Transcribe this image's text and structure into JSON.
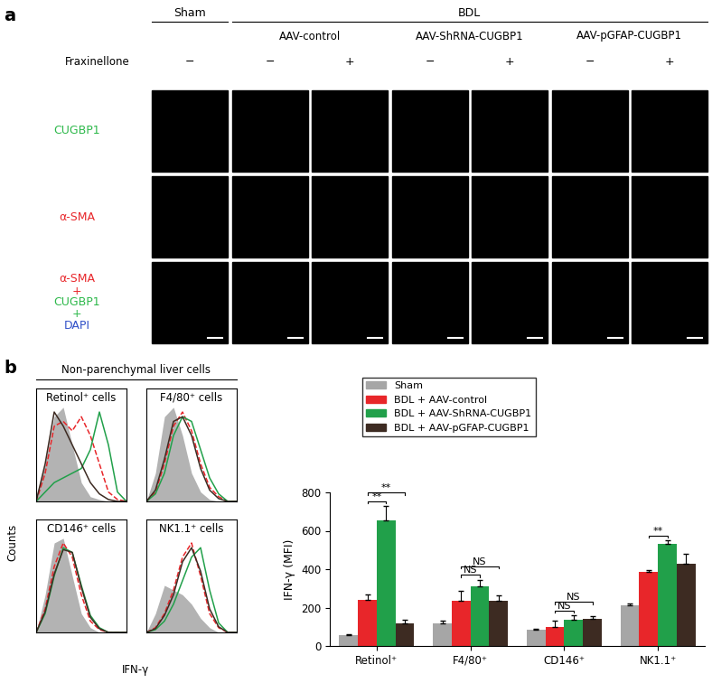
{
  "panel_a": {
    "label": "a",
    "fraxinellone_label": "Fraxinellone",
    "groups": [
      {
        "text": "Sham",
        "columns": [
          0
        ]
      },
      {
        "text": "BDL",
        "columns": [
          1,
          2,
          3,
          4,
          5,
          6
        ]
      }
    ],
    "subgroups": [
      {
        "text": "AAV-control",
        "columns": [
          1,
          2
        ]
      },
      {
        "text": "AAV-ShRNA-CUGBP1",
        "columns": [
          3,
          4
        ]
      },
      {
        "text": "AAV-pGFAP-CUGBP1",
        "columns": [
          5,
          6
        ]
      }
    ],
    "fraxinellone": [
      "−",
      "−",
      "+",
      "−",
      "+",
      "−",
      "+"
    ],
    "rows": [
      {
        "lines": [
          {
            "text": "CUGBP1",
            "color": "#2db84a"
          }
        ]
      },
      {
        "lines": [
          {
            "text": "α-SMA",
            "color": "#e8262a"
          }
        ]
      },
      {
        "lines": [
          {
            "text": "α-SMA",
            "color": "#e8262a"
          },
          {
            "text": "+",
            "color": "#e8262a"
          },
          {
            "text": "CUGBP1",
            "color": "#2db84a"
          },
          {
            "text": "+",
            "color": "#2db84a"
          },
          {
            "text": "DAPI",
            "color": "#3050c8"
          }
        ]
      }
    ]
  },
  "panel_b": {
    "label": "b",
    "histogram_group": "Non-parenchymal liver cells",
    "histogram_ylabel": "Counts",
    "histogram_xlabel": "IFN-γ"
  },
  "chart_data": [
    {
      "type": "line",
      "title": "Retinol⁺ cells",
      "x": [
        0,
        1,
        2,
        3,
        4,
        5,
        6,
        7,
        8,
        9,
        10
      ],
      "xlim": [
        0,
        10
      ],
      "ylim": [
        0,
        120
      ],
      "tick_labels": false,
      "series": [
        {
          "name": "Sham",
          "type": "area",
          "color": "#b3b3b3",
          "values": [
            5,
            40,
            90,
            100,
            60,
            20,
            5,
            2,
            0,
            0,
            0
          ]
        },
        {
          "name": "BDL + AAV-control",
          "color": "#e8262a",
          "line_style": "dashed",
          "values": [
            0,
            30,
            80,
            85,
            75,
            90,
            70,
            40,
            10,
            2,
            0
          ]
        },
        {
          "name": "BDL + AAV-ShRNA-CUGBP1",
          "color": "#21a04a",
          "line_style": "solid",
          "values": [
            0,
            10,
            20,
            25,
            30,
            35,
            55,
            95,
            60,
            10,
            0
          ]
        },
        {
          "name": "BDL + AAV-pGFAP-CUGBP1",
          "color": "#3d2b22",
          "line_style": "solid",
          "values": [
            0,
            40,
            95,
            80,
            60,
            40,
            20,
            8,
            2,
            0,
            0
          ]
        }
      ]
    },
    {
      "type": "line",
      "title": "F4/80⁺ cells",
      "x": [
        0,
        1,
        2,
        3,
        4,
        5,
        6,
        7,
        8,
        9,
        10
      ],
      "xlim": [
        0,
        10
      ],
      "ylim": [
        0,
        120
      ],
      "tick_labels": false,
      "series": [
        {
          "name": "Sham",
          "type": "area",
          "color": "#b3b3b3",
          "values": [
            0,
            30,
            90,
            100,
            70,
            30,
            10,
            2,
            0,
            0,
            0
          ]
        },
        {
          "name": "BDL + AAV-control",
          "color": "#e8262a",
          "line_style": "dashed",
          "values": [
            0,
            10,
            40,
            80,
            95,
            75,
            40,
            15,
            5,
            0,
            0
          ]
        },
        {
          "name": "BDL + AAV-ShRNA-CUGBP1",
          "color": "#21a04a",
          "line_style": "solid",
          "values": [
            0,
            8,
            30,
            70,
            90,
            85,
            55,
            25,
            8,
            0,
            0
          ]
        },
        {
          "name": "BDL + AAV-pGFAP-CUGBP1",
          "color": "#3d2b22",
          "line_style": "solid",
          "values": [
            0,
            12,
            45,
            85,
            90,
            70,
            35,
            12,
            3,
            0,
            0
          ]
        }
      ]
    },
    {
      "type": "line",
      "title": "CD146⁺ cells",
      "x": [
        0,
        1,
        2,
        3,
        4,
        5,
        6,
        7,
        8,
        9,
        10
      ],
      "xlim": [
        0,
        10
      ],
      "ylim": [
        0,
        120
      ],
      "tick_labels": false,
      "series": [
        {
          "name": "Sham",
          "type": "area",
          "color": "#b3b3b3",
          "values": [
            0,
            40,
            95,
            100,
            60,
            20,
            5,
            0,
            0,
            0,
            0
          ]
        },
        {
          "name": "BDL + AAV-control",
          "color": "#e8262a",
          "line_style": "dashed",
          "values": [
            0,
            25,
            70,
            95,
            80,
            40,
            12,
            3,
            0,
            0,
            0
          ]
        },
        {
          "name": "BDL + AAV-ShRNA-CUGBP1",
          "color": "#21a04a",
          "line_style": "solid",
          "values": [
            0,
            20,
            60,
            90,
            85,
            50,
            18,
            5,
            0,
            0,
            0
          ]
        },
        {
          "name": "BDL + AAV-pGFAP-CUGBP1",
          "color": "#3d2b22",
          "line_style": "solid",
          "values": [
            0,
            22,
            62,
            88,
            85,
            48,
            16,
            4,
            0,
            0,
            0
          ]
        }
      ]
    },
    {
      "type": "line",
      "title": "NK1.1⁺ cells",
      "x": [
        0,
        1,
        2,
        3,
        4,
        5,
        6,
        7,
        8,
        9,
        10
      ],
      "xlim": [
        0,
        10
      ],
      "ylim": [
        0,
        120
      ],
      "tick_labels": false,
      "series": [
        {
          "name": "Sham",
          "type": "area",
          "color": "#b3b3b3",
          "values": [
            0,
            20,
            50,
            45,
            40,
            30,
            15,
            5,
            0,
            0,
            0
          ]
        },
        {
          "name": "BDL + AAV-control",
          "color": "#e8262a",
          "line_style": "dashed",
          "values": [
            0,
            5,
            20,
            45,
            80,
            95,
            60,
            20,
            5,
            0,
            0
          ]
        },
        {
          "name": "BDL + AAV-ShRNA-CUGBP1",
          "color": "#21a04a",
          "line_style": "solid",
          "values": [
            0,
            3,
            12,
            30,
            55,
            80,
            90,
            45,
            10,
            0,
            0
          ]
        },
        {
          "name": "BDL + AAV-pGFAP-CUGBP1",
          "color": "#3d2b22",
          "line_style": "solid",
          "values": [
            0,
            4,
            18,
            40,
            75,
            90,
            65,
            25,
            6,
            0,
            0
          ]
        }
      ]
    },
    {
      "type": "bar",
      "categories": [
        "Retinol⁺",
        "F4/80⁺",
        "CD146⁺",
        "NK1.1⁺"
      ],
      "y_label": "IFN-γ (MFI)",
      "ylim": [
        0,
        800
      ],
      "yticks": [
        0,
        200,
        400,
        600,
        800
      ],
      "legend": "upper left",
      "series": [
        {
          "name": "Sham",
          "color": "#a6a6a6",
          "values": [
            55,
            120,
            85,
            210
          ],
          "errors": [
            5,
            10,
            5,
            10
          ]
        },
        {
          "name": "BDL + AAV-control",
          "color": "#e8262a",
          "values": [
            240,
            235,
            100,
            385
          ],
          "errors": [
            30,
            50,
            30,
            10
          ]
        },
        {
          "name": "BDL + AAV-ShRNA-CUGBP1",
          "color": "#21a04a",
          "values": [
            655,
            310,
            135,
            530
          ],
          "errors": [
            75,
            35,
            25,
            20
          ]
        },
        {
          "name": "BDL + AAV-pGFAP-CUGBP1",
          "color": "#3d2b22",
          "values": [
            120,
            235,
            140,
            430
          ],
          "errors": [
            15,
            30,
            15,
            50
          ]
        }
      ],
      "annotations": [
        {
          "category": "Retinol⁺",
          "from": "BDL + AAV-control",
          "to": "BDL + AAV-ShRNA-CUGBP1",
          "text": "**"
        },
        {
          "category": "Retinol⁺",
          "from": "BDL + AAV-control",
          "to": "BDL + AAV-pGFAP-CUGBP1",
          "text": "**"
        },
        {
          "category": "F4/80⁺",
          "from": "BDL + AAV-control",
          "to": "BDL + AAV-ShRNA-CUGBP1",
          "text": "NS"
        },
        {
          "category": "F4/80⁺",
          "from": "BDL + AAV-control",
          "to": "BDL + AAV-pGFAP-CUGBP1",
          "text": "NS"
        },
        {
          "category": "CD146⁺",
          "from": "BDL + AAV-control",
          "to": "BDL + AAV-ShRNA-CUGBP1",
          "text": "NS"
        },
        {
          "category": "CD146⁺",
          "from": "BDL + AAV-control",
          "to": "BDL + AAV-pGFAP-CUGBP1",
          "text": "NS"
        },
        {
          "category": "NK1.1⁺",
          "from": "BDL + AAV-control",
          "to": "BDL + AAV-ShRNA-CUGBP1",
          "text": "**"
        }
      ]
    }
  ]
}
